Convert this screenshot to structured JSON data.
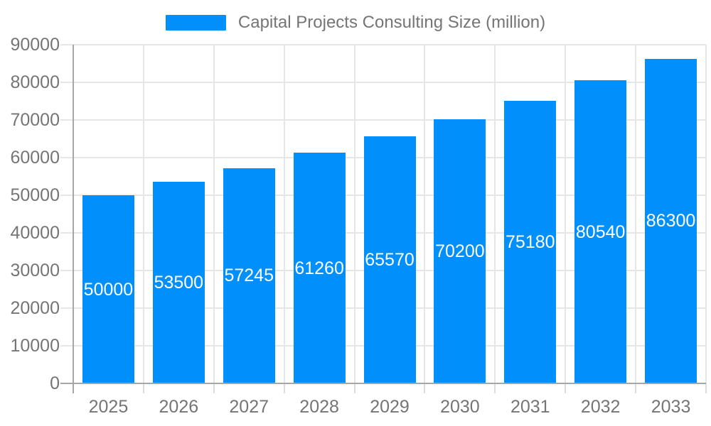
{
  "chart_data": {
    "type": "bar",
    "title": "Capital Projects Consulting Size (million)",
    "legend": {
      "position": "top",
      "entries": [
        "Capital Projects Consulting Size (million)"
      ]
    },
    "categories": [
      "2025",
      "2026",
      "2027",
      "2028",
      "2029",
      "2030",
      "2031",
      "2032",
      "2033"
    ],
    "series": [
      {
        "name": "Capital Projects Consulting Size (million)",
        "values": [
          50000,
          53500,
          57245,
          61260,
          65570,
          70200,
          75180,
          80540,
          86300
        ]
      }
    ],
    "bar_value_labels": [
      "50000",
      "53500",
      "57245",
      "61260",
      "65570",
      "70200",
      "75180",
      "80540",
      "86300"
    ],
    "xlabel": "",
    "ylabel": "",
    "ylim": [
      0,
      90000
    ],
    "ytick_labels": [
      "0",
      "10000",
      "20000",
      "30000",
      "40000",
      "50000",
      "60000",
      "70000",
      "80000",
      "90000"
    ],
    "grid": true,
    "colors": {
      "bar": "#008FFB",
      "grid": "#e6e6e6",
      "tick": "#dcdcdc",
      "axis": "#a6a6a6",
      "axis_text": "#757575",
      "bar_label_text": "#ffffff",
      "background": "#ffffff"
    }
  }
}
